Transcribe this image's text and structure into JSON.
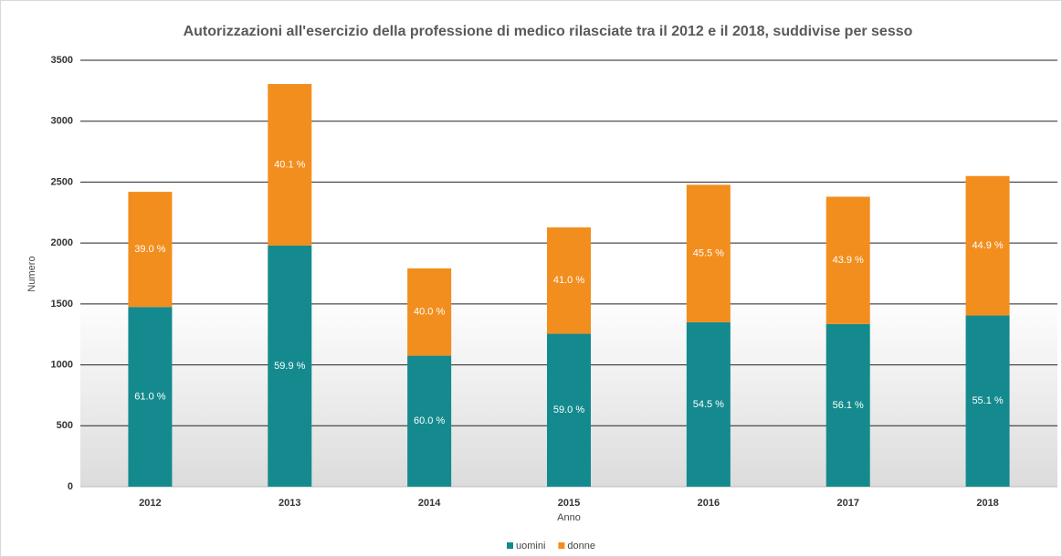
{
  "chart_data": {
    "type": "stacked_bar",
    "title": "Autorizzazioni all'esercizio della professione di medico rilasciate tra il 2012 e il 2018, suddivise per sesso",
    "xlabel": "Anno",
    "ylabel": "Numero",
    "categories": [
      "2012",
      "2013",
      "2014",
      "2015",
      "2016",
      "2017",
      "2018"
    ],
    "series": [
      {
        "name": "uomini",
        "color": "#148a8e",
        "values": [
          1475,
          1979,
          1075,
          1255,
          1350,
          1335,
          1405
        ],
        "data_labels": [
          "61.0 %",
          "59.9 %",
          "60.0 %",
          "59.0 %",
          "54.5 %",
          "56.1 %",
          "55.1 %"
        ]
      },
      {
        "name": "donne",
        "color": "#f28e1e",
        "values": [
          945,
          1326,
          717,
          873,
          1128,
          1045,
          1145
        ],
        "data_labels": [
          "39.0 %",
          "40.1 %",
          "40.0 %",
          "41.0 %",
          "45.5 %",
          "43.9 %",
          "44.9 %"
        ]
      }
    ],
    "ylim": [
      0,
      3500
    ],
    "yticks": [
      0,
      500,
      1000,
      1500,
      2000,
      2500,
      3000,
      3500
    ],
    "grid": true,
    "legend": "bottom"
  }
}
